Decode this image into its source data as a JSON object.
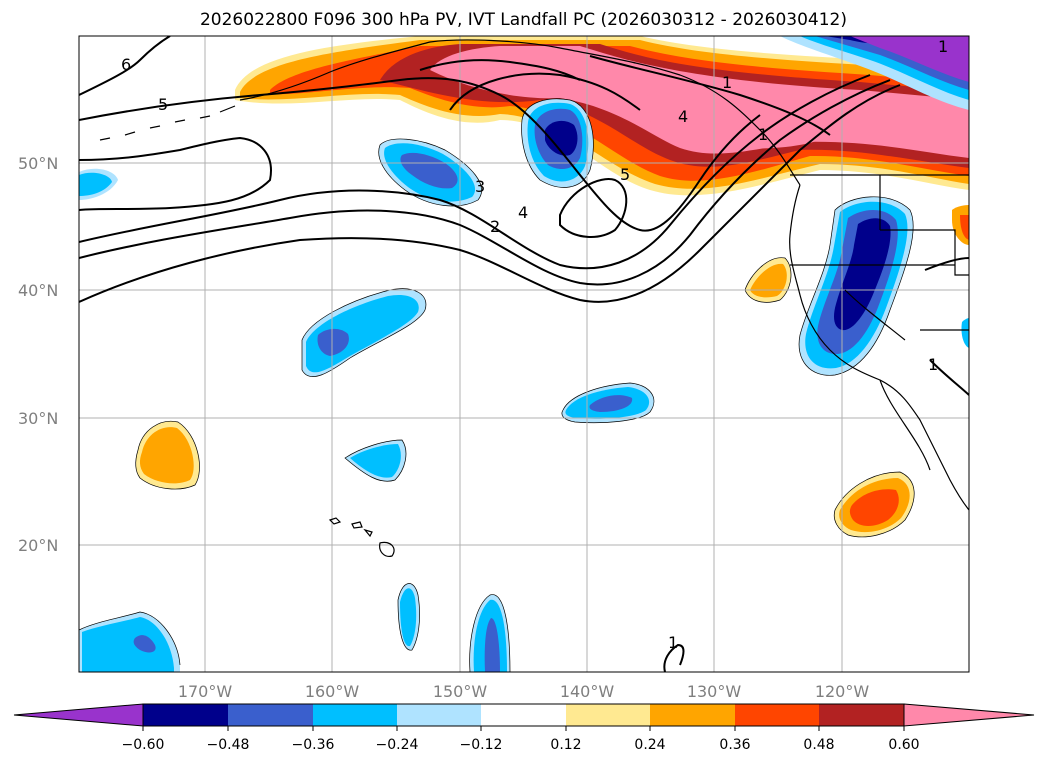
{
  "title": "2026022800 F096 300 hPa PV, IVT Landfall PC (2026030312 - 2026030412)",
  "lat_labels": [
    "50°N",
    "40°N",
    "30°N",
    "20°N"
  ],
  "lon_labels": [
    "170°W",
    "160°W",
    "150°W",
    "140°W",
    "130°W",
    "120°W"
  ],
  "contour_labels": [
    "6",
    "5",
    "1",
    "4",
    "5",
    "3",
    "4",
    "2",
    "1",
    "1",
    "1",
    "1"
  ],
  "colorbar": {
    "ticks": [
      "−0.60",
      "−0.48",
      "−0.36",
      "−0.24",
      "−0.12",
      "0.12",
      "0.24",
      "0.36",
      "0.48",
      "0.60"
    ],
    "colors": [
      "#9933cc",
      "#00008b",
      "#3a5fcd",
      "#00bfff",
      "#afe3ff",
      "#ffffff",
      "#ffe991",
      "#ffa500",
      "#ff4500",
      "#b22222",
      "#ff88aa",
      "#ff88aa"
    ]
  },
  "colors": {
    "grid": "#b0b0b0",
    "land_outline": "#000000",
    "contour": "#000000"
  }
}
